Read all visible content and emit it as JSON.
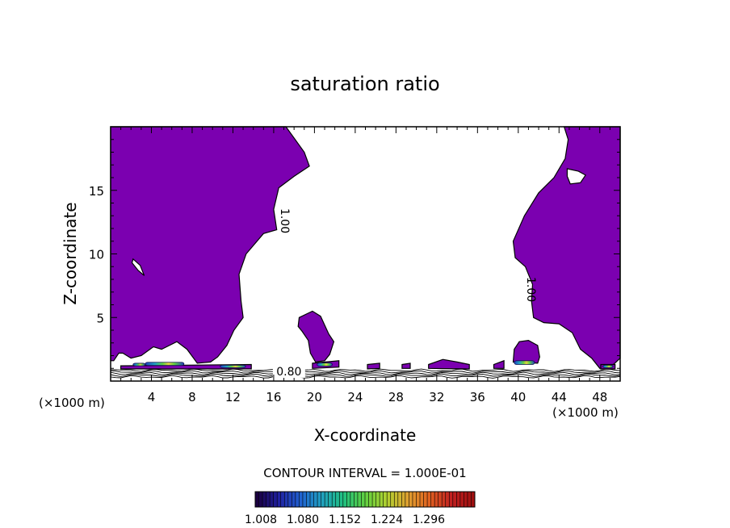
{
  "chart_data": {
    "type": "heatmap",
    "title": "saturation ratio",
    "xlabel": "X-coordinate",
    "ylabel": "Z-coordinate",
    "x_unit_label": "(×1000 m)",
    "xlim": [
      0,
      50
    ],
    "ylim": [
      0,
      20
    ],
    "x_ticks": [
      4,
      8,
      12,
      16,
      20,
      24,
      28,
      32,
      36,
      40,
      44,
      48
    ],
    "y_ticks": [
      5,
      10,
      15
    ],
    "contour_interval_text": "CONTOUR INTERVAL = 1.000E-01",
    "contour_labels": [
      {
        "text": "1.00",
        "x": 16.7,
        "z": 12.6,
        "rotate": 90
      },
      {
        "text": "1.00",
        "x": 40.9,
        "z": 7.2,
        "rotate": 90
      },
      {
        "text": "0.80",
        "x": 17.5,
        "z": 0.45,
        "rotate": 0
      }
    ],
    "colorbar": {
      "ticks": [
        "1.008",
        "1.080",
        "1.152",
        "1.224",
        "1.296"
      ],
      "colors": [
        "#1a0040",
        "#2020a0",
        "#2060d0",
        "#20a0c0",
        "#20c080",
        "#60d040",
        "#b0d030",
        "#e0a030",
        "#e06020",
        "#c02020",
        "#a01010"
      ]
    },
    "fill_color": "#7b00b0",
    "left_region": [
      [
        0,
        20
      ],
      [
        17.2,
        20
      ],
      [
        19,
        18
      ],
      [
        19.5,
        16.9
      ],
      [
        18,
        16.1
      ],
      [
        16.5,
        15.2
      ],
      [
        16,
        13.5
      ],
      [
        16.3,
        11.9
      ],
      [
        15,
        11.6
      ],
      [
        13.3,
        10
      ],
      [
        12.6,
        8.4
      ],
      [
        12.8,
        6.3
      ],
      [
        13,
        5
      ],
      [
        12.1,
        4
      ],
      [
        11.4,
        2.8
      ],
      [
        10.5,
        1.9
      ],
      [
        9.8,
        1.5
      ],
      [
        8.5,
        1.4
      ],
      [
        7.5,
        2.5
      ],
      [
        6.5,
        3.1
      ],
      [
        5,
        2.5
      ],
      [
        4.2,
        2.7
      ],
      [
        3,
        2
      ],
      [
        2,
        1.8
      ],
      [
        1.2,
        2.2
      ],
      [
        0.8,
        2.2
      ],
      [
        0.3,
        1.6
      ],
      [
        0,
        1.6
      ]
    ],
    "left_hole": [
      [
        2.2,
        9.6
      ],
      [
        2.9,
        9.1
      ],
      [
        3.3,
        8.3
      ],
      [
        2.7,
        8.7
      ],
      [
        2.1,
        9.3
      ]
    ],
    "right_region": [
      [
        44.5,
        20
      ],
      [
        44.9,
        19
      ],
      [
        44.6,
        17.5
      ],
      [
        43.5,
        16
      ],
      [
        42,
        14.8
      ],
      [
        40.6,
        13
      ],
      [
        39.5,
        11
      ],
      [
        39.7,
        9.7
      ],
      [
        40.7,
        9
      ],
      [
        41.4,
        7.6
      ],
      [
        41.3,
        6.3
      ],
      [
        41.5,
        5
      ],
      [
        42.5,
        4.6
      ],
      [
        44,
        4.5
      ],
      [
        45.3,
        3.8
      ],
      [
        46.1,
        2.5
      ],
      [
        47.2,
        1.8
      ],
      [
        48,
        1
      ],
      [
        49.2,
        1.2
      ],
      [
        50,
        1.8
      ],
      [
        50,
        20
      ]
    ],
    "right_hole": [
      [
        44.8,
        16.7
      ],
      [
        45.9,
        16.5
      ],
      [
        46.6,
        16.2
      ],
      [
        46.1,
        15.6
      ],
      [
        45.1,
        15.5
      ],
      [
        44.8,
        16.1
      ]
    ],
    "blob_mid": [
      [
        18.5,
        5
      ],
      [
        19.8,
        5.5
      ],
      [
        20.6,
        5.1
      ],
      [
        21.4,
        3.7
      ],
      [
        21.9,
        3.1
      ],
      [
        21.5,
        2.1
      ],
      [
        21,
        1.6
      ],
      [
        20.1,
        1.5
      ],
      [
        19.6,
        2.2
      ],
      [
        19.4,
        3.2
      ],
      [
        18.8,
        3.9
      ],
      [
        18.4,
        4.3
      ]
    ],
    "bump_40": [
      [
        39.5,
        1.5
      ],
      [
        39.6,
        2.5
      ],
      [
        40.1,
        3.1
      ],
      [
        41,
        3.2
      ],
      [
        41.9,
        2.8
      ],
      [
        42.1,
        1.9
      ],
      [
        41.9,
        1.4
      ]
    ],
    "surface_strip": [
      [
        1,
        1.2
      ],
      [
        13.8,
        1.3
      ],
      [
        13.8,
        0.95
      ],
      [
        1,
        0.95
      ]
    ],
    "small_blobs": [
      [
        [
          19.8,
          1.4
        ],
        [
          22.4,
          1.6
        ],
        [
          22.4,
          1.1
        ],
        [
          19.8,
          1
        ]
      ],
      [
        [
          25.2,
          1.3
        ],
        [
          26.4,
          1.4
        ],
        [
          26.4,
          1.0
        ],
        [
          25.2,
          0.95
        ]
      ],
      [
        [
          28.6,
          1.3
        ],
        [
          29.4,
          1.4
        ],
        [
          29.4,
          1.0
        ],
        [
          28.6,
          1
        ]
      ],
      [
        [
          31.2,
          1.3
        ],
        [
          32.6,
          1.7
        ],
        [
          34,
          1.5
        ],
        [
          35.2,
          1.3
        ],
        [
          35.2,
          0.95
        ],
        [
          31.2,
          1
        ]
      ],
      [
        [
          37.6,
          1.3
        ],
        [
          38.6,
          1.6
        ],
        [
          38.6,
          1
        ],
        [
          37.6,
          1
        ]
      ],
      [
        [
          48.1,
          1.3
        ],
        [
          49.5,
          1.3
        ],
        [
          49.5,
          0.95
        ],
        [
          48.1,
          0.95
        ]
      ]
    ],
    "hotspots": [
      {
        "x": 5.3,
        "z": 1.35,
        "w": 3.8,
        "h": 0.25
      },
      {
        "x": 2.8,
        "z": 1.3,
        "w": 1.2,
        "h": 0.2
      },
      {
        "x": 12.0,
        "z": 1.15,
        "w": 2.5,
        "h": 0.2
      },
      {
        "x": 21.0,
        "z": 1.3,
        "w": 1.5,
        "h": 0.25
      },
      {
        "x": 40.6,
        "z": 1.45,
        "w": 2.0,
        "h": 0.3
      },
      {
        "x": 48.8,
        "z": 1.15,
        "w": 1.0,
        "h": 0.2
      }
    ]
  }
}
